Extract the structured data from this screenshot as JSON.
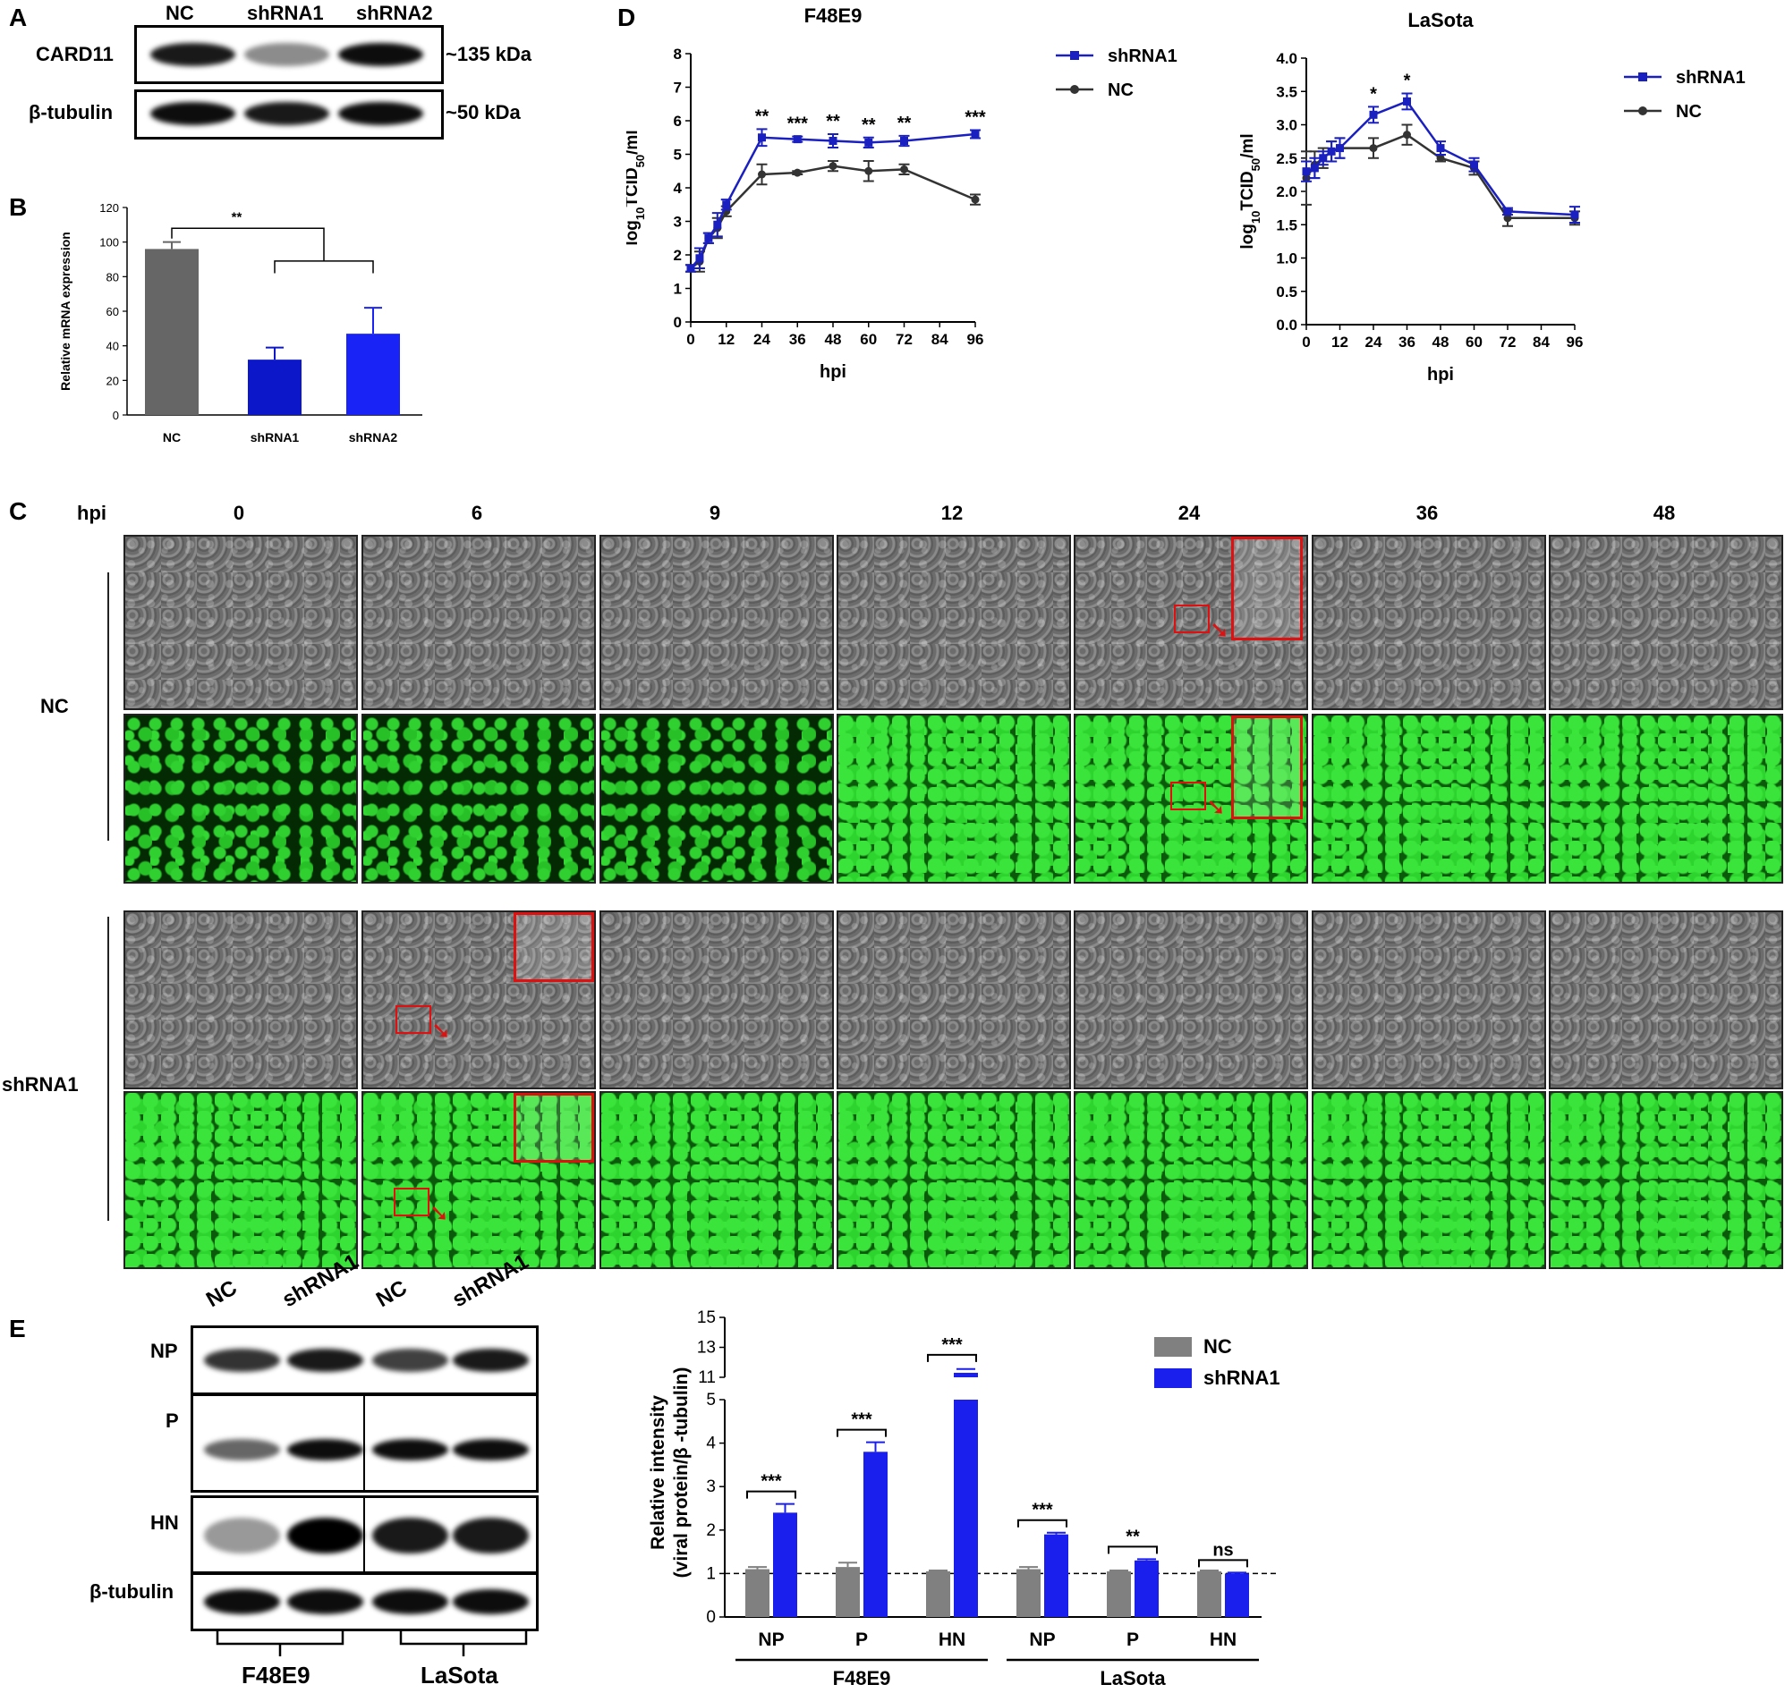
{
  "panels": {
    "A": "A",
    "B": "B",
    "C": "C",
    "D": "D",
    "E": "E"
  },
  "panelA": {
    "lanes": [
      "NC",
      "shRNA1",
      "shRNA2"
    ],
    "rows": [
      {
        "label": "CARD11",
        "size": "~135 kDa",
        "intensities": [
          0.9,
          0.45,
          0.95
        ]
      },
      {
        "label": "β-tubulin",
        "size": "~50 kDa",
        "intensities": [
          0.95,
          0.9,
          0.95
        ]
      }
    ]
  },
  "panelC": {
    "hpi_label": "hpi",
    "timepoints": [
      "0",
      "6",
      "9",
      "12",
      "24",
      "36",
      "48"
    ],
    "groups": [
      "NC",
      "shRNA1"
    ]
  },
  "panelE_blot": {
    "lanes": [
      "NC",
      "shRNA1",
      "NC",
      "shRNA1"
    ],
    "rows": [
      "NP",
      "P",
      "HN",
      "β-tubulin"
    ],
    "strains": [
      "F48E9",
      "LaSota"
    ]
  },
  "chart_data": [
    {
      "id": "B",
      "type": "bar",
      "categories": [
        "NC",
        "shRNA1",
        "shRNA2"
      ],
      "values": [
        96,
        32,
        47
      ],
      "errors": [
        4,
        7,
        15
      ],
      "colors": [
        "#666666",
        "#0b17c9",
        "#1a23f5"
      ],
      "ylabel": "Relative mRNA expression",
      "ylim": [
        0,
        120
      ],
      "yticks": [
        0,
        20,
        40,
        60,
        80,
        100,
        120
      ],
      "annotation": "**"
    },
    {
      "id": "D1",
      "type": "line",
      "title": "F48E9",
      "xlabel": "hpi",
      "ylabel": "log10TCID50/ml",
      "x": [
        0,
        3,
        6,
        9,
        12,
        24,
        36,
        48,
        60,
        72,
        96
      ],
      "xticks": [
        0,
        12,
        24,
        36,
        48,
        60,
        72,
        84,
        96
      ],
      "ylim": [
        0,
        8
      ],
      "yticks": [
        0,
        1,
        2,
        3,
        4,
        5,
        6,
        7,
        8
      ],
      "series": [
        {
          "name": "shRNA1",
          "color": "#1a1fc0",
          "marker": "square",
          "values": [
            1.6,
            1.9,
            2.5,
            2.9,
            3.5,
            5.5,
            5.45,
            5.4,
            5.35,
            5.4,
            5.6
          ],
          "errors": [
            0.1,
            0.3,
            0.15,
            0.35,
            0.15,
            0.25,
            0.08,
            0.2,
            0.15,
            0.15,
            0.12
          ]
        },
        {
          "name": "NC",
          "color": "#333333",
          "marker": "circle",
          "values": [
            1.6,
            1.8,
            2.5,
            2.8,
            3.3,
            4.4,
            4.45,
            4.65,
            4.5,
            4.55,
            3.65
          ],
          "errors": [
            0.1,
            0.3,
            0.15,
            0.3,
            0.15,
            0.3,
            0.05,
            0.15,
            0.3,
            0.15,
            0.15
          ]
        }
      ],
      "annotations": [
        {
          "x": 24,
          "text": "**"
        },
        {
          "x": 36,
          "text": "***"
        },
        {
          "x": 48,
          "text": "**"
        },
        {
          "x": 60,
          "text": "**"
        },
        {
          "x": 72,
          "text": "**"
        },
        {
          "x": 96,
          "text": "***"
        }
      ]
    },
    {
      "id": "D2",
      "type": "line",
      "title": "LaSota",
      "xlabel": "hpi",
      "ylabel": "log10TCID50/ml",
      "x": [
        0,
        3,
        6,
        9,
        12,
        24,
        36,
        48,
        60,
        72,
        96
      ],
      "xticks": [
        0,
        12,
        24,
        36,
        48,
        60,
        72,
        84,
        96
      ],
      "ylim": [
        0,
        4
      ],
      "yticks": [
        "0.0",
        "0.5",
        "1.0",
        "1.5",
        "2.0",
        "2.5",
        "3.0",
        "3.5",
        "4.0"
      ],
      "series": [
        {
          "name": "shRNA1",
          "color": "#1a1fc0",
          "marker": "square",
          "values": [
            2.3,
            2.35,
            2.5,
            2.6,
            2.65,
            3.15,
            3.35,
            2.65,
            2.4,
            1.7,
            1.65
          ],
          "errors": [
            0.15,
            0.15,
            0.1,
            0.15,
            0.15,
            0.12,
            0.12,
            0.1,
            0.1,
            0.05,
            0.12
          ]
        },
        {
          "name": "NC",
          "color": "#333333",
          "marker": "circle",
          "values": [
            2.2,
            2.4,
            2.5,
            2.6,
            2.65,
            2.65,
            2.85,
            2.5,
            2.35,
            1.6,
            1.6
          ],
          "errors": [
            0.4,
            0.2,
            0.15,
            0.15,
            0.15,
            0.15,
            0.15,
            0.05,
            0.1,
            0.12,
            0.1
          ]
        }
      ],
      "annotations": [
        {
          "x": 24,
          "text": "*"
        },
        {
          "x": 36,
          "text": "*"
        }
      ]
    },
    {
      "id": "E",
      "type": "bar",
      "categories": [
        "NP",
        "P",
        "HN",
        "NP",
        "P",
        "HN"
      ],
      "groups": [
        "F48E9",
        "LaSota"
      ],
      "ylabel_line1": "Relative intensity",
      "ylabel_line2": "(viral protein/β -tubulin)",
      "yticks_lower": [
        0,
        1,
        2,
        3,
        4,
        5
      ],
      "yticks_upper": [
        11,
        13,
        15
      ],
      "series": [
        {
          "name": "NC",
          "color": "#808080",
          "values": [
            1.1,
            1.15,
            1.05,
            1.1,
            1.05,
            1.05
          ],
          "errors": [
            0.05,
            0.1,
            0.02,
            0.05,
            0.02,
            0.02
          ]
        },
        {
          "name": "shRNA1",
          "color": "#1a1fee",
          "values": [
            2.4,
            3.8,
            11.3,
            1.9,
            1.3,
            1.0
          ],
          "errors": [
            0.2,
            0.22,
            0.25,
            0.04,
            0.03,
            0.02
          ]
        }
      ],
      "significance": [
        "***",
        "***",
        "***",
        "***",
        "**",
        "ns"
      ],
      "reference_line": 1
    }
  ]
}
